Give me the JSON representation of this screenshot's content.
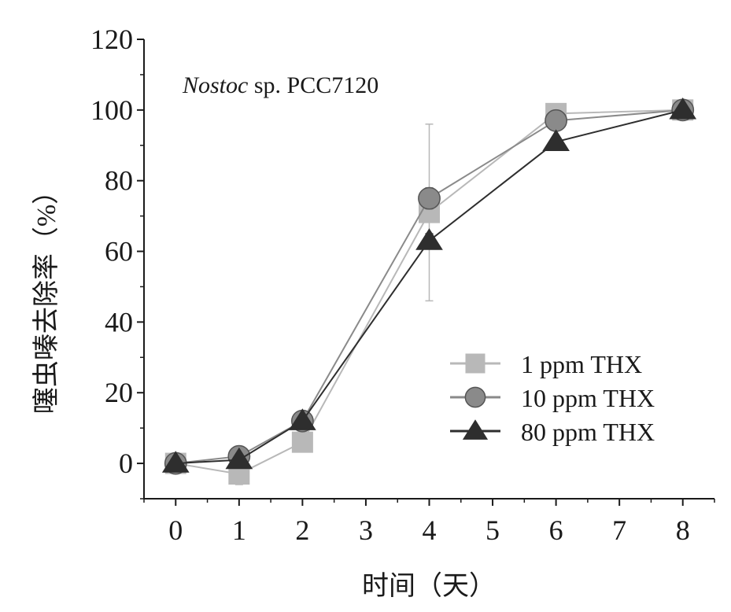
{
  "chart_data": {
    "type": "line",
    "annotation": {
      "italic": "Nostoc",
      "rest": " sp. PCC7120"
    },
    "xlabel": "时间（天）",
    "ylabel": "噻虫嗪去除率（%）",
    "xlim": [
      -0.5,
      8.5
    ],
    "ylim": [
      -10,
      120
    ],
    "xticks": [
      "0",
      "1",
      "2",
      "3",
      "4",
      "5",
      "6",
      "7",
      "8"
    ],
    "yticks": [
      "0",
      "20",
      "40",
      "60",
      "80",
      "100",
      "120"
    ],
    "grid": false,
    "legend_position": "lower-right",
    "x": [
      0,
      1,
      2,
      4,
      6,
      8
    ],
    "series": [
      {
        "name": "1   ppm THX",
        "marker": "square",
        "color": "#b8b8b8",
        "values": [
          0,
          -3,
          6,
          71,
          99,
          100
        ],
        "error": [
          0.5,
          3,
          2,
          25,
          1,
          0.5
        ]
      },
      {
        "name": "10 ppm THX",
        "marker": "circle",
        "color": "#8a8a8a",
        "values": [
          0,
          2,
          12,
          75,
          97,
          100
        ],
        "error": [
          0.5,
          1,
          1,
          3,
          1,
          0.5
        ]
      },
      {
        "name": "80 ppm THX",
        "marker": "triangle",
        "color": "#2e2e2e",
        "values": [
          0,
          1,
          12,
          63,
          91,
          100
        ],
        "error": [
          0.5,
          1,
          1,
          2,
          1,
          0.5
        ]
      }
    ]
  }
}
